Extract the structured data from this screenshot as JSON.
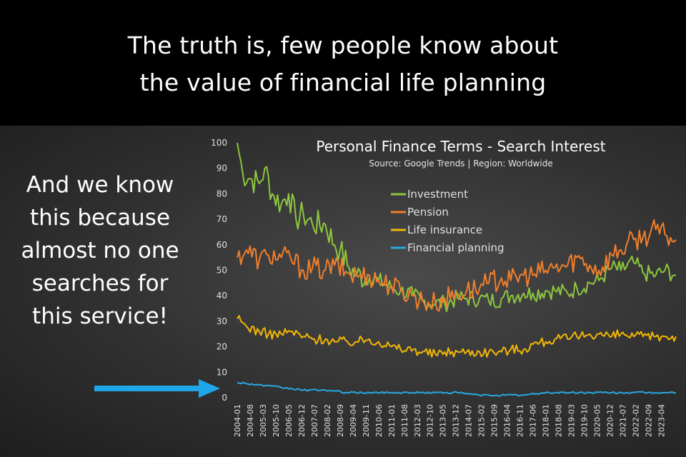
{
  "header": {
    "line1": "The truth is, few people know about",
    "line2": "the value of financial life planning"
  },
  "side_text": {
    "lines": [
      "And we know",
      "this because",
      "almost no one",
      "searches for",
      "this service!"
    ]
  },
  "arrow_color": "#1ea7e8",
  "chart_data": {
    "type": "line",
    "title": "Personal Finance Terms - Search Interest",
    "subtitle": "Source: Google Trends | Region: Worldwide",
    "ylim": [
      0,
      100
    ],
    "yticks": [
      0,
      10,
      20,
      30,
      40,
      50,
      60,
      70,
      80,
      90,
      100
    ],
    "x_range": [
      "2004-01",
      "2023-12"
    ],
    "xticks": [
      "2004-01",
      "2004-08",
      "2005-03",
      "2005-10",
      "2006-05",
      "2006-12",
      "2007-07",
      "2008-02",
      "2008-09",
      "2009-04",
      "2009-11",
      "2010-06",
      "2011-01",
      "2011-08",
      "2012-03",
      "2012-10",
      "2013-05",
      "2013-12",
      "2014-07",
      "2015-02",
      "2015-09",
      "2016-04",
      "2016-11",
      "2017-06",
      "2018-01",
      "2018-08",
      "2019-03",
      "2019-10",
      "2020-05",
      "2020-12",
      "2021-07",
      "2022-02",
      "2022-09",
      "2023-04"
    ],
    "legend_position": "top-center",
    "series": [
      {
        "name": "Investment",
        "color": "#8dc63f",
        "points": [
          [
            "2004-01",
            100
          ],
          [
            "2004-04",
            88
          ],
          [
            "2004-08",
            86
          ],
          [
            "2005-01",
            84
          ],
          [
            "2005-04",
            90
          ],
          [
            "2005-08",
            80
          ],
          [
            "2006-01",
            76
          ],
          [
            "2006-05",
            80
          ],
          [
            "2006-09",
            70
          ],
          [
            "2007-01",
            72
          ],
          [
            "2007-06",
            68
          ],
          [
            "2008-01",
            68
          ],
          [
            "2008-06",
            60
          ],
          [
            "2008-09",
            58
          ],
          [
            "2009-01",
            52
          ],
          [
            "2009-06",
            48
          ],
          [
            "2010-01",
            47
          ],
          [
            "2010-06",
            46
          ],
          [
            "2011-01",
            43
          ],
          [
            "2011-06",
            42
          ],
          [
            "2012-01",
            40
          ],
          [
            "2012-06",
            38
          ],
          [
            "2013-01",
            37
          ],
          [
            "2013-06",
            37
          ],
          [
            "2014-01",
            39
          ],
          [
            "2014-06",
            39
          ],
          [
            "2015-01",
            39
          ],
          [
            "2015-06",
            38
          ],
          [
            "2016-01",
            39
          ],
          [
            "2016-06",
            40
          ],
          [
            "2017-01",
            41
          ],
          [
            "2017-06",
            41
          ],
          [
            "2018-01",
            42
          ],
          [
            "2018-06",
            42
          ],
          [
            "2019-01",
            41
          ],
          [
            "2019-06",
            43
          ],
          [
            "2020-01",
            45
          ],
          [
            "2020-06",
            46
          ],
          [
            "2021-01",
            51
          ],
          [
            "2021-06",
            50
          ],
          [
            "2022-01",
            53
          ],
          [
            "2022-06",
            49
          ],
          [
            "2023-01",
            48
          ],
          [
            "2023-06",
            50
          ],
          [
            "2023-12",
            48
          ]
        ]
      },
      {
        "name": "Pension",
        "color": "#f07f2c",
        "points": [
          [
            "2004-01",
            55
          ],
          [
            "2004-06",
            58
          ],
          [
            "2005-01",
            54
          ],
          [
            "2005-06",
            56
          ],
          [
            "2006-01",
            55
          ],
          [
            "2006-06",
            55
          ],
          [
            "2007-01",
            50
          ],
          [
            "2007-06",
            51
          ],
          [
            "2008-01",
            50
          ],
          [
            "2008-06",
            52
          ],
          [
            "2009-01",
            49
          ],
          [
            "2009-06",
            48
          ],
          [
            "2010-01",
            48
          ],
          [
            "2010-06",
            46
          ],
          [
            "2011-01",
            44
          ],
          [
            "2011-06",
            42
          ],
          [
            "2012-01",
            40
          ],
          [
            "2012-06",
            38
          ],
          [
            "2013-01",
            37
          ],
          [
            "2013-06",
            39
          ],
          [
            "2014-01",
            41
          ],
          [
            "2014-06",
            42
          ],
          [
            "2015-01",
            43
          ],
          [
            "2015-06",
            45
          ],
          [
            "2016-01",
            47
          ],
          [
            "2016-06",
            46
          ],
          [
            "2017-01",
            48
          ],
          [
            "2017-06",
            48
          ],
          [
            "2018-01",
            50
          ],
          [
            "2018-06",
            51
          ],
          [
            "2019-01",
            52
          ],
          [
            "2019-06",
            55
          ],
          [
            "2020-01",
            52
          ],
          [
            "2020-06",
            50
          ],
          [
            "2021-01",
            56
          ],
          [
            "2021-06",
            58
          ],
          [
            "2022-01",
            62
          ],
          [
            "2022-06",
            63
          ],
          [
            "2023-01",
            66
          ],
          [
            "2023-06",
            64
          ],
          [
            "2023-12",
            62
          ]
        ]
      },
      {
        "name": "Life insurance",
        "color": "#f2b705",
        "points": [
          [
            "2004-01",
            31
          ],
          [
            "2004-06",
            28
          ],
          [
            "2005-01",
            26
          ],
          [
            "2005-06",
            25
          ],
          [
            "2006-01",
            25
          ],
          [
            "2006-06",
            26
          ],
          [
            "2007-01",
            24
          ],
          [
            "2007-06",
            23
          ],
          [
            "2008-01",
            23
          ],
          [
            "2008-06",
            22
          ],
          [
            "2009-01",
            22
          ],
          [
            "2009-06",
            22
          ],
          [
            "2010-01",
            23
          ],
          [
            "2010-06",
            22
          ],
          [
            "2011-01",
            20
          ],
          [
            "2011-06",
            19
          ],
          [
            "2012-01",
            19
          ],
          [
            "2012-06",
            18
          ],
          [
            "2013-01",
            17
          ],
          [
            "2013-06",
            18
          ],
          [
            "2014-01",
            18
          ],
          [
            "2014-06",
            18
          ],
          [
            "2015-01",
            18
          ],
          [
            "2015-06",
            18
          ],
          [
            "2016-01",
            18
          ],
          [
            "2016-06",
            19
          ],
          [
            "2017-01",
            19
          ],
          [
            "2017-06",
            21
          ],
          [
            "2018-01",
            22
          ],
          [
            "2018-06",
            23
          ],
          [
            "2019-01",
            23
          ],
          [
            "2019-06",
            24
          ],
          [
            "2020-01",
            25
          ],
          [
            "2020-06",
            25
          ],
          [
            "2021-01",
            24
          ],
          [
            "2021-06",
            25
          ],
          [
            "2022-01",
            24
          ],
          [
            "2022-06",
            24
          ],
          [
            "2023-01",
            24
          ],
          [
            "2023-06",
            24
          ],
          [
            "2023-12",
            24
          ]
        ]
      },
      {
        "name": "Financial planning",
        "color": "#29a8e0",
        "points": [
          [
            "2004-01",
            6
          ],
          [
            "2005-01",
            5
          ],
          [
            "2006-01",
            4
          ],
          [
            "2007-01",
            3
          ],
          [
            "2008-01",
            3
          ],
          [
            "2009-01",
            2
          ],
          [
            "2010-01",
            2
          ],
          [
            "2011-01",
            2
          ],
          [
            "2012-01",
            2
          ],
          [
            "2013-01",
            2
          ],
          [
            "2014-01",
            2
          ],
          [
            "2015-01",
            1
          ],
          [
            "2016-01",
            1
          ],
          [
            "2017-01",
            1
          ],
          [
            "2018-01",
            2
          ],
          [
            "2019-01",
            2
          ],
          [
            "2020-01",
            2
          ],
          [
            "2021-01",
            2
          ],
          [
            "2022-01",
            2
          ],
          [
            "2023-01",
            2
          ],
          [
            "2023-12",
            2
          ]
        ]
      }
    ]
  }
}
